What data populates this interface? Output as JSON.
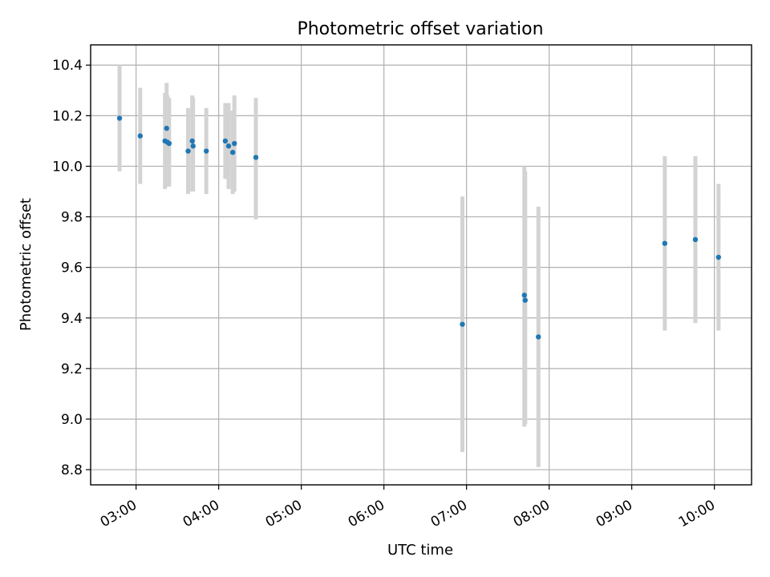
{
  "chart_data": {
    "type": "scatter",
    "title": "Photometric offset variation",
    "xlabel": "UTC time",
    "ylabel": "Photometric offset",
    "x_tick_labels": [
      "03:00",
      "04:00",
      "05:00",
      "06:00",
      "07:00",
      "08:00",
      "09:00",
      "10:00"
    ],
    "x_ticks_hours": [
      3,
      4,
      5,
      6,
      7,
      8,
      9,
      10
    ],
    "y_ticks": [
      8.8,
      9.0,
      9.2,
      9.4,
      9.6,
      9.8,
      10.0,
      10.2,
      10.4
    ],
    "xlim_hours": [
      2.45,
      10.45
    ],
    "ylim": [
      8.74,
      10.48
    ],
    "grid": true,
    "colors": {
      "points": "#1f77b4",
      "errorbars": "#d3d3d3",
      "grid": "#b0b0b0"
    },
    "points": [
      {
        "t": 2.8,
        "y": 10.19,
        "lo": 9.98,
        "hi": 10.4
      },
      {
        "t": 3.05,
        "y": 10.12,
        "lo": 9.93,
        "hi": 10.31
      },
      {
        "t": 3.35,
        "y": 10.1,
        "lo": 9.91,
        "hi": 10.29
      },
      {
        "t": 3.37,
        "y": 10.15,
        "lo": 9.92,
        "hi": 10.33
      },
      {
        "t": 3.38,
        "y": 10.095,
        "lo": 9.92,
        "hi": 10.28
      },
      {
        "t": 3.4,
        "y": 10.09,
        "lo": 9.92,
        "hi": 10.27
      },
      {
        "t": 3.63,
        "y": 10.06,
        "lo": 9.89,
        "hi": 10.23
      },
      {
        "t": 3.68,
        "y": 10.1,
        "lo": 9.9,
        "hi": 10.28
      },
      {
        "t": 3.69,
        "y": 10.08,
        "lo": 9.9,
        "hi": 10.27
      },
      {
        "t": 3.85,
        "y": 10.06,
        "lo": 9.89,
        "hi": 10.23
      },
      {
        "t": 4.08,
        "y": 10.1,
        "lo": 9.95,
        "hi": 10.25
      },
      {
        "t": 4.12,
        "y": 10.08,
        "lo": 9.91,
        "hi": 10.25
      },
      {
        "t": 4.17,
        "y": 10.055,
        "lo": 9.89,
        "hi": 10.22
      },
      {
        "t": 4.19,
        "y": 10.09,
        "lo": 9.9,
        "hi": 10.28
      },
      {
        "t": 4.45,
        "y": 10.035,
        "lo": 9.79,
        "hi": 10.27
      },
      {
        "t": 6.95,
        "y": 9.375,
        "lo": 8.87,
        "hi": 9.88
      },
      {
        "t": 7.7,
        "y": 9.49,
        "lo": 8.97,
        "hi": 10.0
      },
      {
        "t": 7.71,
        "y": 9.47,
        "lo": 8.98,
        "hi": 9.98
      },
      {
        "t": 7.87,
        "y": 9.325,
        "lo": 8.81,
        "hi": 9.84
      },
      {
        "t": 9.4,
        "y": 9.695,
        "lo": 9.35,
        "hi": 10.04
      },
      {
        "t": 9.77,
        "y": 9.71,
        "lo": 9.38,
        "hi": 10.04
      },
      {
        "t": 10.05,
        "y": 9.64,
        "lo": 9.35,
        "hi": 9.93
      }
    ]
  }
}
